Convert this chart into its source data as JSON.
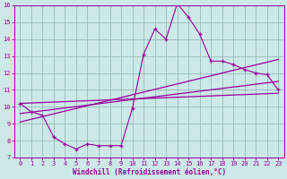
{
  "xlabel": "Windchill (Refroidissement éolien,°C)",
  "bg_color": "#cce8e8",
  "line_color": "#990099",
  "grid_color": "#99bbbb",
  "scatter_x": [
    0,
    1,
    2,
    3,
    4,
    5,
    6,
    7,
    8,
    9,
    10,
    11,
    12,
    13,
    14,
    15,
    16,
    17,
    18,
    19,
    20,
    21,
    22,
    23
  ],
  "scatter_y": [
    10.2,
    9.7,
    9.5,
    8.2,
    7.8,
    7.5,
    7.8,
    7.7,
    7.7,
    7.7,
    9.9,
    13.1,
    14.6,
    14.0,
    16.1,
    15.3,
    14.3,
    12.7,
    12.7,
    12.5,
    12.2,
    12.0,
    11.9,
    11.0
  ],
  "line1_y0": 10.2,
  "line1_y1": 10.8,
  "line2_y0": 9.6,
  "line2_y1": 11.5,
  "line3_y0": 9.1,
  "line3_y1": 12.8,
  "xlim": [
    -0.5,
    23.5
  ],
  "ylim": [
    7,
    16
  ],
  "xticks": [
    0,
    1,
    2,
    3,
    4,
    5,
    6,
    7,
    8,
    9,
    10,
    11,
    12,
    13,
    14,
    15,
    16,
    17,
    18,
    19,
    20,
    21,
    22,
    23
  ],
  "yticks": [
    7,
    8,
    9,
    10,
    11,
    12,
    13,
    14,
    15,
    16
  ],
  "tick_fontsize": 5.0,
  "xlabel_fontsize": 5.5
}
